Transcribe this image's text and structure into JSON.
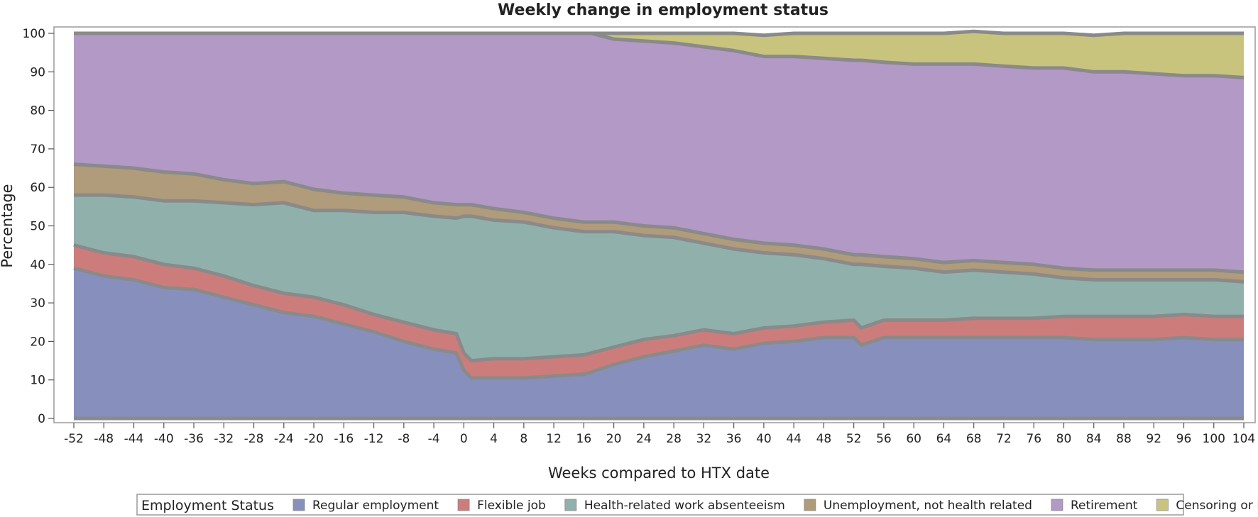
{
  "chart_data": {
    "type": "area",
    "stacked": true,
    "title": "Weekly change in employment status",
    "xlabel": "Weeks compared to HTX date",
    "ylabel": "Percentage",
    "xlim": [
      -52,
      104
    ],
    "ylim": [
      0,
      100
    ],
    "x_ticks": [
      -52,
      -48,
      -44,
      -40,
      -36,
      -32,
      -28,
      -24,
      -20,
      -16,
      -12,
      -8,
      -4,
      0,
      4,
      8,
      12,
      16,
      20,
      24,
      28,
      32,
      36,
      40,
      44,
      48,
      52,
      56,
      60,
      64,
      68,
      72,
      76,
      80,
      84,
      88,
      92,
      96,
      100,
      104
    ],
    "y_ticks": [
      0,
      10,
      20,
      30,
      40,
      50,
      60,
      70,
      80,
      90,
      100
    ],
    "grid": false,
    "legend": {
      "title": "Employment Status",
      "placement": "bottom"
    },
    "x": [
      -52,
      -48,
      -44,
      -40,
      -36,
      -32,
      -28,
      -24,
      -20,
      -16,
      -12,
      -8,
      -4,
      -1,
      0,
      1,
      4,
      8,
      12,
      16,
      17,
      20,
      24,
      28,
      32,
      36,
      40,
      44,
      48,
      52,
      53,
      56,
      60,
      64,
      68,
      72,
      76,
      80,
      84,
      88,
      92,
      96,
      100,
      104
    ],
    "series": [
      {
        "name": "Regular employment",
        "color": "#8790bd",
        "values": [
          39,
          37,
          36,
          34,
          33.5,
          31.5,
          29.5,
          27.5,
          26.5,
          24.5,
          22.5,
          20,
          18,
          17,
          12.5,
          10.5,
          10.5,
          10.5,
          11,
          11.5,
          12,
          14,
          16,
          17.5,
          19,
          18,
          19.5,
          20,
          21,
          21,
          19,
          21,
          21,
          21,
          21,
          21,
          21,
          21,
          20.5,
          20.5,
          20.5,
          21,
          20.5,
          20.5
        ]
      },
      {
        "name": "Flexible job",
        "color": "#cc7d7b",
        "values": [
          6,
          6,
          6,
          6,
          5.5,
          5.5,
          5,
          5,
          5,
          5,
          4.5,
          5,
          5,
          5,
          4.5,
          4.5,
          5,
          5,
          5,
          5,
          5,
          4.5,
          4.5,
          4,
          4,
          4,
          4,
          4,
          4,
          4.5,
          4.5,
          4.5,
          4.5,
          4.5,
          5,
          5,
          5,
          5.5,
          6,
          6,
          6,
          6,
          6,
          6
        ]
      },
      {
        "name": "Health-related work absenteeism",
        "color": "#90b1ab",
        "values": [
          13,
          15,
          15.5,
          16.5,
          17.5,
          19,
          21,
          23.5,
          22.5,
          24.5,
          26.5,
          28.5,
          29.5,
          30,
          35.5,
          37.5,
          36,
          35.5,
          33.5,
          32,
          31.5,
          30,
          27,
          25.5,
          22.5,
          22,
          19.5,
          18.5,
          16.5,
          14.5,
          16.5,
          14,
          13.5,
          12.5,
          12.5,
          12,
          11.5,
          10,
          9.5,
          9.5,
          9.5,
          9,
          9.5,
          9
        ]
      },
      {
        "name": "Unemployment, not health related",
        "color": "#b09b7b",
        "values": [
          8,
          7.5,
          7.5,
          7.5,
          7,
          6,
          5.5,
          5.5,
          5.5,
          4.5,
          4.5,
          4,
          3.5,
          3.5,
          3,
          3,
          3,
          2.5,
          2.5,
          2.5,
          2.5,
          2.5,
          2.5,
          2.5,
          2.5,
          2.5,
          2.5,
          2.5,
          2.5,
          2.5,
          2.5,
          2.5,
          2.5,
          2.5,
          2.5,
          2.5,
          2.5,
          2.5,
          2.5,
          2.5,
          2.5,
          2.5,
          2.5,
          2.5
        ]
      },
      {
        "name": "Retirement",
        "color": "#b399c5",
        "values": [
          34,
          34.5,
          35,
          36,
          36.5,
          38,
          39,
          38.5,
          40.5,
          41.5,
          42,
          42.5,
          44,
          44.5,
          44.5,
          44.5,
          45.5,
          46.5,
          48,
          49,
          49,
          47.5,
          48,
          48,
          48.5,
          49,
          48.5,
          49,
          49.5,
          50.5,
          50.5,
          50.5,
          50.5,
          51.5,
          51,
          51,
          51,
          52,
          51.5,
          51.5,
          51,
          50.5,
          50.5,
          50.5
        ]
      },
      {
        "name": "Censoring or Death",
        "color": "#c8c47e",
        "values": [
          0,
          0,
          0,
          0,
          0,
          0,
          0,
          0,
          0,
          0,
          0,
          0,
          0,
          0,
          0,
          0,
          0,
          0,
          0,
          0,
          0,
          1.5,
          2,
          2.5,
          3.5,
          4.5,
          5.5,
          6,
          6.5,
          7,
          7,
          7.5,
          8,
          8,
          8.5,
          8.5,
          9,
          9,
          9.5,
          10,
          10.5,
          11,
          11,
          11.5
        ]
      }
    ]
  }
}
